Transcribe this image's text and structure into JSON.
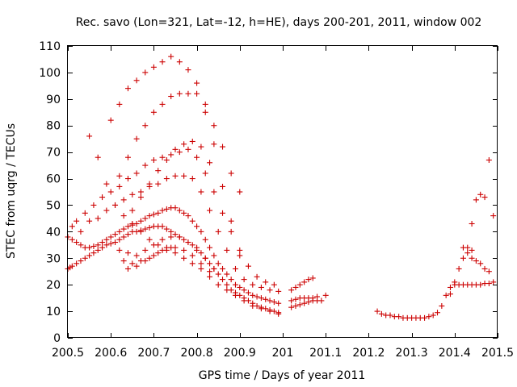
{
  "chart_data": {
    "type": "scatter",
    "title": "Rec. savo (Lon=321, Lat=-12, h=HE), days 200-201, 2011, window 002",
    "xlabel": "GPS time / Days of year 2011",
    "ylabel": "STEC from uqrg / TECUs",
    "xlim": [
      200.5,
      201.5
    ],
    "ylim": [
      0,
      110
    ],
    "x_ticks": [
      200.5,
      200.6,
      200.7,
      200.8,
      200.9,
      201.0,
      201.1,
      201.2,
      201.3,
      201.4,
      201.5
    ],
    "x_tick_labels": [
      "200.5",
      "200.6",
      "200.7",
      "200.8",
      "200.9",
      "201",
      "201.1",
      "201.2",
      "201.3",
      "201.4",
      "201.5"
    ],
    "y_ticks": [
      0,
      10,
      20,
      30,
      40,
      50,
      60,
      70,
      80,
      90,
      100,
      110
    ],
    "y_tick_labels": [
      "0",
      "10",
      "20",
      "30",
      "40",
      "50",
      "60",
      "70",
      "80",
      "90",
      "100",
      "110"
    ],
    "grid": false,
    "marker": "plus",
    "marker_color": "#cc0000",
    "points": [
      [
        200.5,
        26
      ],
      [
        200.505,
        26.5
      ],
      [
        200.51,
        27
      ],
      [
        200.52,
        28
      ],
      [
        200.53,
        29
      ],
      [
        200.54,
        30
      ],
      [
        200.55,
        31
      ],
      [
        200.56,
        32
      ],
      [
        200.57,
        33
      ],
      [
        200.58,
        34
      ],
      [
        200.59,
        35
      ],
      [
        200.6,
        35.5
      ],
      [
        200.61,
        36
      ],
      [
        200.62,
        37
      ],
      [
        200.63,
        38
      ],
      [
        200.64,
        39
      ],
      [
        200.65,
        40
      ],
      [
        200.66,
        40
      ],
      [
        200.67,
        40.5
      ],
      [
        200.68,
        41
      ],
      [
        200.69,
        41.5
      ],
      [
        200.7,
        42
      ],
      [
        200.71,
        42
      ],
      [
        200.72,
        42
      ],
      [
        200.73,
        41
      ],
      [
        200.74,
        40
      ],
      [
        200.75,
        39
      ],
      [
        200.76,
        38
      ],
      [
        200.77,
        37
      ],
      [
        200.78,
        36
      ],
      [
        200.79,
        35
      ],
      [
        200.8,
        34
      ],
      [
        200.81,
        32
      ],
      [
        200.82,
        30
      ],
      [
        200.83,
        28
      ],
      [
        200.84,
        26
      ],
      [
        200.85,
        24
      ],
      [
        200.86,
        22
      ],
      [
        200.87,
        20
      ],
      [
        200.88,
        18
      ],
      [
        200.89,
        17
      ],
      [
        200.9,
        16
      ],
      [
        200.91,
        15
      ],
      [
        200.92,
        14
      ],
      [
        200.93,
        13
      ],
      [
        200.94,
        12
      ],
      [
        200.95,
        11.5
      ],
      [
        200.96,
        11
      ],
      [
        200.97,
        10.5
      ],
      [
        200.98,
        10
      ],
      [
        200.99,
        9.5
      ],
      [
        200.5,
        38
      ],
      [
        200.51,
        37
      ],
      [
        200.52,
        36
      ],
      [
        200.53,
        35
      ],
      [
        200.54,
        34
      ],
      [
        200.55,
        34
      ],
      [
        200.56,
        34.5
      ],
      [
        200.57,
        35
      ],
      [
        200.58,
        36
      ],
      [
        200.59,
        37
      ],
      [
        200.6,
        38
      ],
      [
        200.61,
        39
      ],
      [
        200.62,
        40
      ],
      [
        200.63,
        41
      ],
      [
        200.64,
        42
      ],
      [
        200.65,
        42.5
      ],
      [
        200.66,
        43
      ],
      [
        200.67,
        44
      ],
      [
        200.68,
        45
      ],
      [
        200.69,
        46
      ],
      [
        200.7,
        46.5
      ],
      [
        200.71,
        47
      ],
      [
        200.72,
        48
      ],
      [
        200.73,
        48.5
      ],
      [
        200.74,
        49
      ],
      [
        200.75,
        49
      ],
      [
        200.76,
        48
      ],
      [
        200.77,
        47
      ],
      [
        200.78,
        46
      ],
      [
        200.79,
        44
      ],
      [
        200.8,
        42
      ],
      [
        200.81,
        40
      ],
      [
        200.82,
        37
      ],
      [
        200.83,
        34
      ],
      [
        200.84,
        31
      ],
      [
        200.85,
        28
      ],
      [
        200.86,
        26
      ],
      [
        200.87,
        24
      ],
      [
        200.88,
        22
      ],
      [
        200.89,
        20
      ],
      [
        200.9,
        19
      ],
      [
        200.91,
        18
      ],
      [
        200.92,
        17
      ],
      [
        200.93,
        16
      ],
      [
        200.94,
        15.5
      ],
      [
        200.95,
        15
      ],
      [
        200.96,
        14.5
      ],
      [
        200.97,
        14
      ],
      [
        200.98,
        13.5
      ],
      [
        200.99,
        13
      ],
      [
        200.51,
        42
      ],
      [
        200.53,
        40
      ],
      [
        200.55,
        44
      ],
      [
        200.57,
        45
      ],
      [
        200.59,
        48
      ],
      [
        200.61,
        50
      ],
      [
        200.63,
        52
      ],
      [
        200.65,
        54
      ],
      [
        200.67,
        55
      ],
      [
        200.69,
        57
      ],
      [
        200.71,
        58
      ],
      [
        200.73,
        60
      ],
      [
        200.75,
        61
      ],
      [
        200.77,
        61
      ],
      [
        200.79,
        60
      ],
      [
        200.81,
        55
      ],
      [
        200.83,
        48
      ],
      [
        200.85,
        40
      ],
      [
        200.87,
        33
      ],
      [
        200.89,
        26
      ],
      [
        200.91,
        22
      ],
      [
        200.93,
        20
      ],
      [
        200.95,
        19
      ],
      [
        200.97,
        18
      ],
      [
        200.99,
        17.5
      ],
      [
        200.52,
        44
      ],
      [
        200.54,
        47
      ],
      [
        200.56,
        50
      ],
      [
        200.58,
        53
      ],
      [
        200.6,
        55
      ],
      [
        200.62,
        57
      ],
      [
        200.64,
        60
      ],
      [
        200.66,
        62
      ],
      [
        200.68,
        65
      ],
      [
        200.7,
        67
      ],
      [
        200.72,
        68
      ],
      [
        200.74,
        69
      ],
      [
        200.76,
        70
      ],
      [
        200.78,
        71
      ],
      [
        200.8,
        68
      ],
      [
        200.82,
        62
      ],
      [
        200.84,
        55
      ],
      [
        200.86,
        47
      ],
      [
        200.88,
        40
      ],
      [
        200.9,
        33
      ],
      [
        200.92,
        27
      ],
      [
        200.94,
        23
      ],
      [
        200.96,
        21
      ],
      [
        200.98,
        20
      ],
      [
        200.55,
        76
      ],
      [
        200.57,
        68
      ],
      [
        200.59,
        58
      ],
      [
        200.61,
        50
      ],
      [
        200.63,
        46
      ],
      [
        200.65,
        43
      ],
      [
        200.67,
        40
      ],
      [
        200.69,
        37
      ],
      [
        200.71,
        35
      ],
      [
        200.73,
        33
      ],
      [
        200.75,
        32
      ],
      [
        200.77,
        30
      ],
      [
        200.79,
        28
      ],
      [
        200.81,
        26
      ],
      [
        200.83,
        23
      ],
      [
        200.85,
        20
      ],
      [
        200.87,
        18
      ],
      [
        200.89,
        16
      ],
      [
        200.91,
        14
      ],
      [
        200.93,
        12
      ],
      [
        200.95,
        11
      ],
      [
        200.97,
        10
      ],
      [
        200.99,
        9
      ],
      [
        200.6,
        82
      ],
      [
        200.62,
        88
      ],
      [
        200.64,
        94
      ],
      [
        200.66,
        97
      ],
      [
        200.68,
        100
      ],
      [
        200.7,
        102
      ],
      [
        200.72,
        104
      ],
      [
        200.74,
        106
      ],
      [
        200.76,
        104
      ],
      [
        200.78,
        101
      ],
      [
        200.8,
        96
      ],
      [
        200.82,
        88
      ],
      [
        200.84,
        80
      ],
      [
        200.86,
        72
      ],
      [
        200.88,
        62
      ],
      [
        200.9,
        55
      ],
      [
        200.62,
        61
      ],
      [
        200.64,
        68
      ],
      [
        200.66,
        75
      ],
      [
        200.68,
        80
      ],
      [
        200.7,
        85
      ],
      [
        200.72,
        88
      ],
      [
        200.74,
        91
      ],
      [
        200.76,
        92
      ],
      [
        200.78,
        92
      ],
      [
        200.8,
        92
      ],
      [
        200.82,
        85
      ],
      [
        200.84,
        73
      ],
      [
        200.86,
        57
      ],
      [
        200.88,
        44
      ],
      [
        200.9,
        31
      ],
      [
        200.65,
        48
      ],
      [
        200.67,
        53
      ],
      [
        200.69,
        58
      ],
      [
        200.71,
        63
      ],
      [
        200.73,
        67
      ],
      [
        200.75,
        71
      ],
      [
        200.77,
        73
      ],
      [
        200.79,
        74
      ],
      [
        200.81,
        72
      ],
      [
        200.83,
        66
      ],
      [
        200.62,
        33
      ],
      [
        200.64,
        32
      ],
      [
        200.66,
        31
      ],
      [
        200.68,
        33
      ],
      [
        200.7,
        35
      ],
      [
        200.72,
        37
      ],
      [
        200.74,
        38
      ],
      [
        200.76,
        38
      ],
      [
        200.78,
        36
      ],
      [
        200.8,
        33
      ],
      [
        200.82,
        30
      ],
      [
        200.84,
        26
      ],
      [
        200.63,
        29
      ],
      [
        200.65,
        28
      ],
      [
        200.67,
        29
      ],
      [
        200.69,
        30
      ],
      [
        200.71,
        32
      ],
      [
        200.73,
        34
      ],
      [
        200.75,
        34
      ],
      [
        200.77,
        33
      ],
      [
        200.79,
        31
      ],
      [
        200.81,
        28
      ],
      [
        200.83,
        25
      ],
      [
        200.64,
        26
      ],
      [
        200.66,
        27
      ],
      [
        200.68,
        29
      ],
      [
        200.7,
        31
      ],
      [
        200.72,
        33
      ],
      [
        200.74,
        34
      ],
      [
        201.02,
        11.5
      ],
      [
        201.03,
        12
      ],
      [
        201.04,
        12.5
      ],
      [
        201.05,
        13
      ],
      [
        201.06,
        13.5
      ],
      [
        201.07,
        14
      ],
      [
        201.08,
        14
      ],
      [
        201.09,
        14
      ],
      [
        201.02,
        14
      ],
      [
        201.03,
        14.5
      ],
      [
        201.04,
        15
      ],
      [
        201.05,
        15
      ],
      [
        201.06,
        15
      ],
      [
        201.07,
        15
      ],
      [
        201.08,
        15.5
      ],
      [
        201.1,
        16
      ],
      [
        201.02,
        18
      ],
      [
        201.03,
        19
      ],
      [
        201.04,
        20
      ],
      [
        201.05,
        21
      ],
      [
        201.06,
        22
      ],
      [
        201.07,
        22.5
      ],
      [
        201.22,
        10
      ],
      [
        201.23,
        9
      ],
      [
        201.24,
        8.5
      ],
      [
        201.25,
        8.5
      ],
      [
        201.26,
        8
      ],
      [
        201.27,
        8
      ],
      [
        201.28,
        7.5
      ],
      [
        201.29,
        7.5
      ],
      [
        201.3,
        7.5
      ],
      [
        201.31,
        7.5
      ],
      [
        201.32,
        7.5
      ],
      [
        201.33,
        7.5
      ],
      [
        201.34,
        8
      ],
      [
        201.35,
        8.5
      ],
      [
        201.36,
        9.5
      ],
      [
        201.37,
        12
      ],
      [
        201.38,
        16
      ],
      [
        201.39,
        19
      ],
      [
        201.4,
        20
      ],
      [
        201.41,
        20
      ],
      [
        201.42,
        20
      ],
      [
        201.43,
        20
      ],
      [
        201.44,
        20
      ],
      [
        201.45,
        20
      ],
      [
        201.46,
        20
      ],
      [
        201.47,
        20.5
      ],
      [
        201.48,
        20.5
      ],
      [
        201.49,
        21
      ],
      [
        201.39,
        16.5
      ],
      [
        201.4,
        21
      ],
      [
        201.41,
        26
      ],
      [
        201.42,
        30
      ],
      [
        201.43,
        32
      ],
      [
        201.44,
        30
      ],
      [
        201.45,
        29
      ],
      [
        201.46,
        28
      ],
      [
        201.47,
        26
      ],
      [
        201.48,
        25
      ],
      [
        201.44,
        43
      ],
      [
        201.45,
        52
      ],
      [
        201.46,
        54
      ],
      [
        201.47,
        53
      ],
      [
        201.48,
        67
      ],
      [
        201.49,
        46
      ],
      [
        201.42,
        34
      ],
      [
        201.43,
        34
      ],
      [
        201.44,
        33
      ]
    ]
  }
}
